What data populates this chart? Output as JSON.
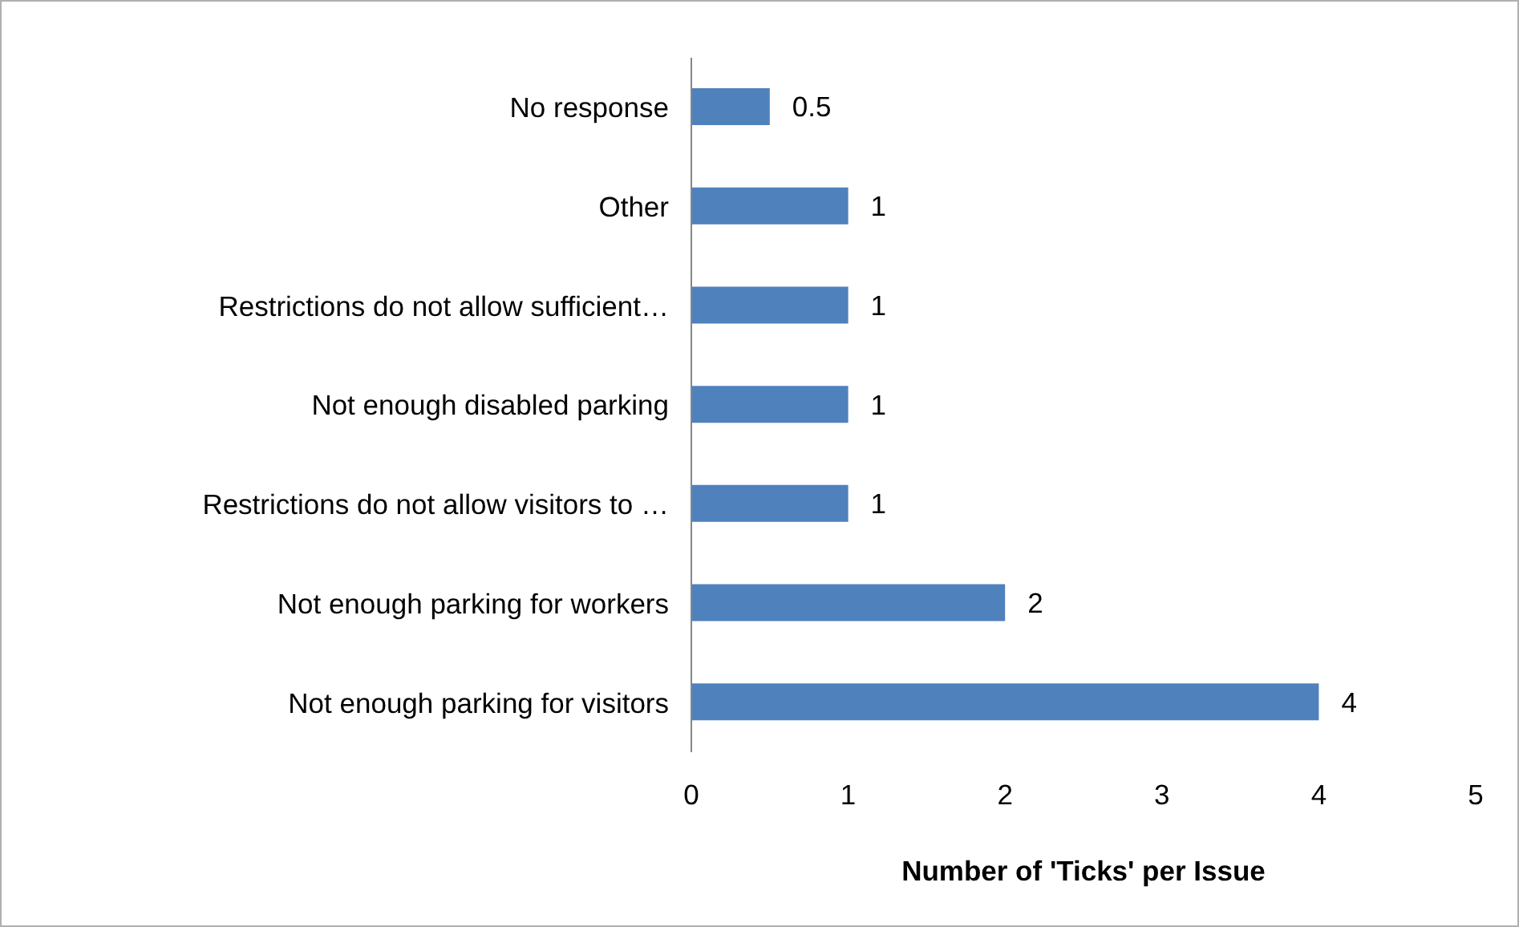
{
  "chart_data": {
    "type": "bar",
    "orientation": "horizontal",
    "categories": [
      "No response",
      "Other",
      "Restrictions do not allow sufficient…",
      "Not enough disabled parking",
      "Restrictions do not allow visitors to …",
      "Not enough parking for workers",
      "Not enough parking for visitors"
    ],
    "values": [
      0.5,
      1,
      1,
      1,
      1,
      2,
      4
    ],
    "color": "#4f81bd",
    "xlim": [
      0,
      5
    ],
    "xticks": [
      0,
      1,
      2,
      3,
      4,
      5
    ],
    "xlabel": "Number of 'Ticks'  per Issue",
    "data_labels": true
  }
}
